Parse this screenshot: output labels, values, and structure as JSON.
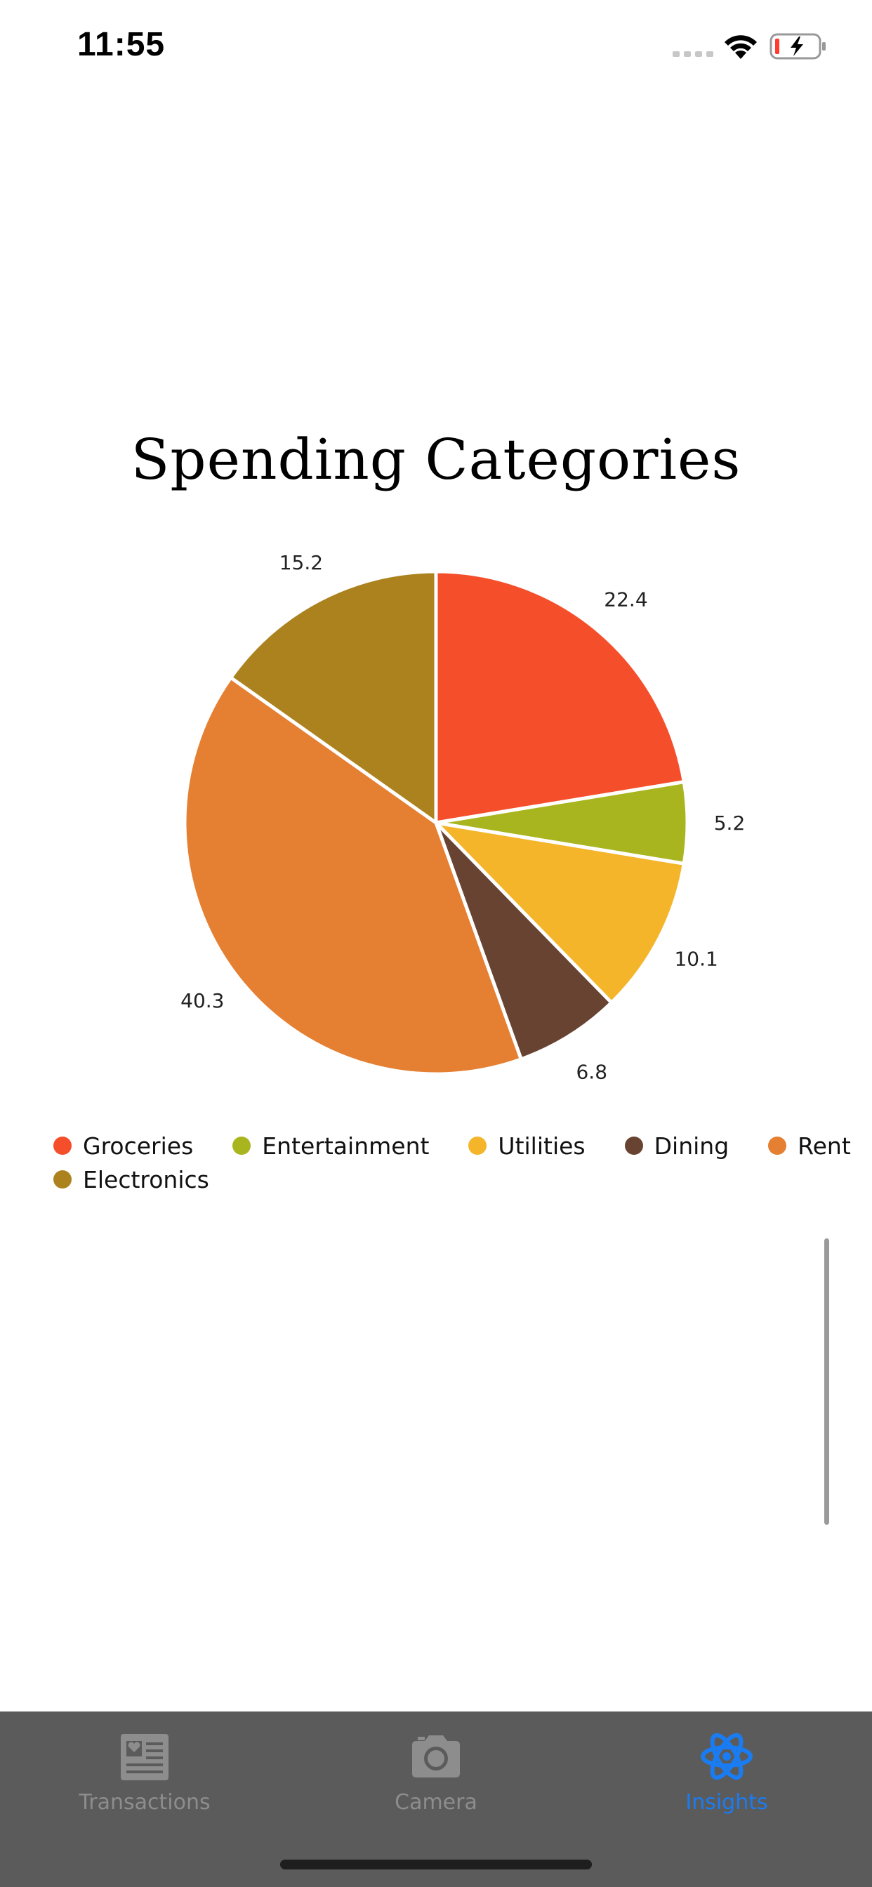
{
  "status_bar": {
    "time": "11:55"
  },
  "chart_data": {
    "type": "pie",
    "title": "Spending Categories",
    "categories": [
      "Groceries",
      "Entertainment",
      "Utilities",
      "Dining",
      "Rent",
      "Electronics"
    ],
    "values": [
      22.4,
      5.2,
      10.1,
      6.8,
      40.3,
      15.2
    ],
    "colors": [
      "#f54e2b",
      "#a9b51e",
      "#f4b52b",
      "#684332",
      "#e57f32",
      "#ab821e"
    ],
    "legend_placement": "bottom"
  },
  "tab_bar": {
    "tabs": [
      {
        "label": "Transactions",
        "icon": "newspaper-icon",
        "active": false
      },
      {
        "label": "Camera",
        "icon": "camera-icon",
        "active": false
      },
      {
        "label": "Insights",
        "icon": "atom-icon",
        "active": true
      }
    ],
    "inactive_color": "#8d8d8d",
    "active_color": "#1a7cf2"
  }
}
